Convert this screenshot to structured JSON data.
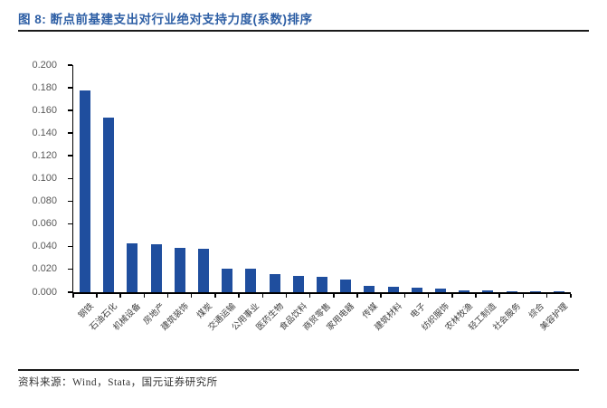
{
  "header": {
    "title": "图 8: 断点前基建支出对行业绝对支持力度(系数)排序"
  },
  "footer": {
    "source": "资料来源：Wind，Stata，国元证券研究所"
  },
  "colors": {
    "title_blue": "#2E5FA5",
    "bar_blue": "#1F4E9E",
    "axis_text_gray": "#595959",
    "category_text": "#3f3f3f",
    "rule_black": "#1a1a1a"
  },
  "chart_data": {
    "type": "bar",
    "title": "断点前基建支出对行业绝对支持力度(系数)排序",
    "categories": [
      "钢铁",
      "石油石化",
      "机械设备",
      "房地产",
      "建筑装饰",
      "煤炭",
      "交通运输",
      "公用事业",
      "医药生物",
      "食品饮料",
      "商贸零售",
      "家用电器",
      "传媒",
      "建筑材料",
      "电子",
      "纺织服饰",
      "农林牧渔",
      "轻工制造",
      "社会服务",
      "综合",
      "美容护理"
    ],
    "values": [
      0.178,
      0.154,
      0.043,
      0.042,
      0.039,
      0.038,
      0.021,
      0.021,
      0.016,
      0.014,
      0.0135,
      0.011,
      0.0055,
      0.0045,
      0.0037,
      0.0029,
      0.0019,
      0.0016,
      0.0011,
      0.0005,
      0.0003
    ],
    "xlabel": "",
    "ylabel": "",
    "ylim": [
      0,
      0.2
    ],
    "ytick_labels": [
      "0.000",
      "0.020",
      "0.040",
      "0.060",
      "0.080",
      "0.100",
      "0.120",
      "0.140",
      "0.160",
      "0.180",
      "0.200"
    ],
    "grid": false,
    "legend": "none",
    "bar_color": "#1F4E9E"
  }
}
